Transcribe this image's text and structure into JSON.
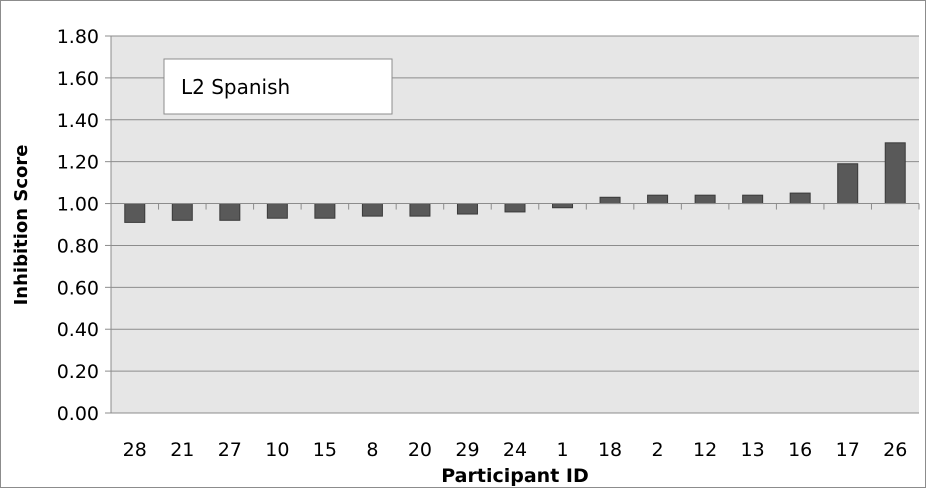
{
  "chart_data": {
    "type": "bar",
    "title": "",
    "annotation": "L2 Spanish",
    "xlabel": "Participant ID",
    "ylabel": "Inhibition Score",
    "baseline": 1.0,
    "ylim": [
      0,
      1.8
    ],
    "yticks": [
      "0.00",
      "0.20",
      "0.40",
      "0.60",
      "0.80",
      "1.00",
      "1.20",
      "1.40",
      "1.60",
      "1.80"
    ],
    "ytick_values": [
      0,
      0.2,
      0.4,
      0.6,
      0.8,
      1.0,
      1.2,
      1.4,
      1.6,
      1.8
    ],
    "grid": true,
    "categories": [
      "28",
      "21",
      "27",
      "10",
      "15",
      "8",
      "20",
      "29",
      "24",
      "1",
      "18",
      "2",
      "12",
      "13",
      "16",
      "17",
      "26"
    ],
    "values": [
      0.91,
      0.92,
      0.92,
      0.93,
      0.93,
      0.94,
      0.94,
      0.95,
      0.96,
      0.98,
      1.03,
      1.04,
      1.04,
      1.04,
      1.05,
      1.19,
      1.29
    ],
    "colors": {
      "plot_background": "#e6e6e6",
      "bar_fill": "#595959",
      "bar_stroke": "#3a3a3a",
      "gridline": "#8c8c8c",
      "text": "#000000"
    }
  }
}
